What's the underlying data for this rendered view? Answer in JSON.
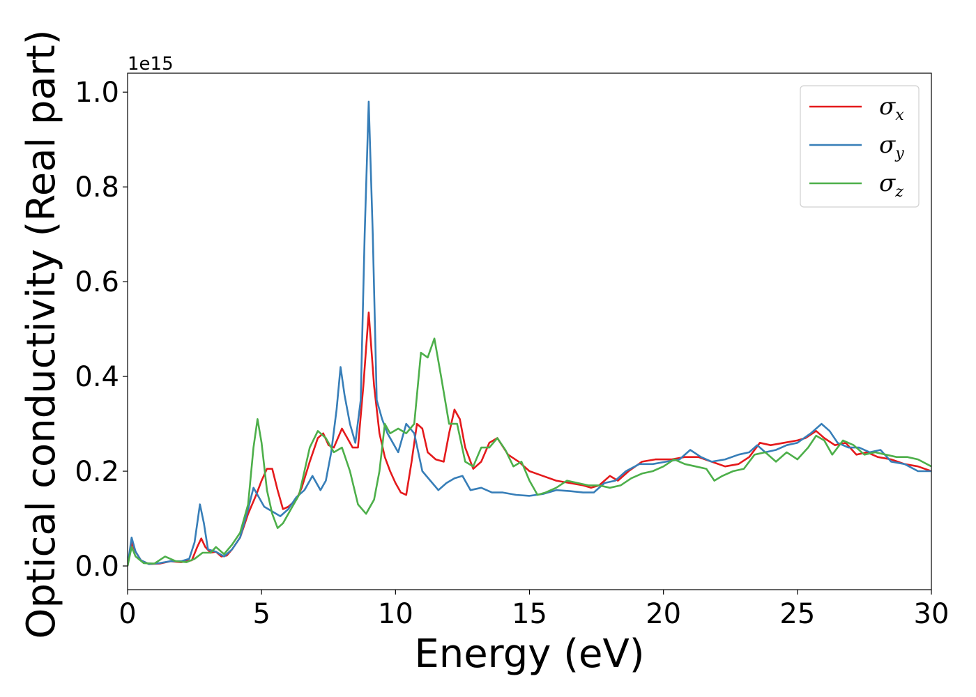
{
  "chart_data": {
    "type": "line",
    "xlabel": "Energy (eV)",
    "ylabel": "Optical conductivity (Real part)",
    "y_offset_label": "1e15",
    "xlim": [
      0,
      30
    ],
    "ylim": [
      -0.05,
      1.04
    ],
    "x_ticks": [
      0,
      5,
      10,
      15,
      20,
      25,
      30
    ],
    "x_tick_labels": [
      "0",
      "5",
      "10",
      "15",
      "20",
      "25",
      "30"
    ],
    "y_ticks": [
      0.0,
      0.2,
      0.4,
      0.6,
      0.8,
      1.0
    ],
    "y_tick_labels": [
      "0.0",
      "0.2",
      "0.4",
      "0.6",
      "0.8",
      "1.0"
    ],
    "grid": false,
    "legend_position": "top-right",
    "series": [
      {
        "name": "σ",
        "subscript": "x",
        "color": "#e41a1c",
        "points": [
          [
            0,
            0.0
          ],
          [
            0.15,
            0.05
          ],
          [
            0.3,
            0.03
          ],
          [
            0.5,
            0.012
          ],
          [
            0.8,
            0.004
          ],
          [
            1.2,
            0.005
          ],
          [
            1.6,
            0.01
          ],
          [
            2.0,
            0.008
          ],
          [
            2.4,
            0.012
          ],
          [
            2.6,
            0.04
          ],
          [
            2.75,
            0.058
          ],
          [
            2.9,
            0.04
          ],
          [
            3.1,
            0.028
          ],
          [
            3.3,
            0.03
          ],
          [
            3.5,
            0.02
          ],
          [
            3.7,
            0.022
          ],
          [
            3.9,
            0.035
          ],
          [
            4.2,
            0.06
          ],
          [
            4.5,
            0.11
          ],
          [
            4.8,
            0.15
          ],
          [
            5.0,
            0.18
          ],
          [
            5.2,
            0.205
          ],
          [
            5.4,
            0.205
          ],
          [
            5.6,
            0.16
          ],
          [
            5.8,
            0.12
          ],
          [
            6.0,
            0.125
          ],
          [
            6.3,
            0.14
          ],
          [
            6.5,
            0.165
          ],
          [
            6.8,
            0.22
          ],
          [
            7.1,
            0.27
          ],
          [
            7.3,
            0.28
          ],
          [
            7.5,
            0.255
          ],
          [
            7.7,
            0.25
          ],
          [
            7.85,
            0.27
          ],
          [
            8.0,
            0.29
          ],
          [
            8.2,
            0.27
          ],
          [
            8.4,
            0.25
          ],
          [
            8.6,
            0.25
          ],
          [
            8.8,
            0.38
          ],
          [
            9.0,
            0.535
          ],
          [
            9.2,
            0.38
          ],
          [
            9.4,
            0.28
          ],
          [
            9.6,
            0.23
          ],
          [
            9.8,
            0.2
          ],
          [
            10.0,
            0.175
          ],
          [
            10.2,
            0.155
          ],
          [
            10.4,
            0.15
          ],
          [
            10.6,
            0.22
          ],
          [
            10.8,
            0.3
          ],
          [
            11.0,
            0.29
          ],
          [
            11.2,
            0.24
          ],
          [
            11.5,
            0.225
          ],
          [
            11.8,
            0.22
          ],
          [
            12.0,
            0.28
          ],
          [
            12.2,
            0.33
          ],
          [
            12.4,
            0.31
          ],
          [
            12.6,
            0.25
          ],
          [
            12.9,
            0.205
          ],
          [
            13.2,
            0.22
          ],
          [
            13.5,
            0.26
          ],
          [
            13.8,
            0.27
          ],
          [
            14.2,
            0.235
          ],
          [
            14.6,
            0.22
          ],
          [
            15.0,
            0.2
          ],
          [
            15.5,
            0.19
          ],
          [
            16.0,
            0.18
          ],
          [
            16.5,
            0.175
          ],
          [
            17.0,
            0.17
          ],
          [
            17.3,
            0.165
          ],
          [
            17.6,
            0.17
          ],
          [
            18.0,
            0.19
          ],
          [
            18.3,
            0.18
          ],
          [
            18.7,
            0.2
          ],
          [
            19.2,
            0.22
          ],
          [
            19.7,
            0.225
          ],
          [
            20.3,
            0.225
          ],
          [
            20.8,
            0.23
          ],
          [
            21.3,
            0.23
          ],
          [
            21.8,
            0.22
          ],
          [
            22.3,
            0.21
          ],
          [
            22.8,
            0.215
          ],
          [
            23.2,
            0.23
          ],
          [
            23.6,
            0.26
          ],
          [
            24.0,
            0.255
          ],
          [
            24.5,
            0.26
          ],
          [
            25.0,
            0.265
          ],
          [
            25.3,
            0.27
          ],
          [
            25.7,
            0.285
          ],
          [
            26.0,
            0.27
          ],
          [
            26.4,
            0.255
          ],
          [
            26.8,
            0.26
          ],
          [
            27.2,
            0.235
          ],
          [
            27.6,
            0.24
          ],
          [
            28.0,
            0.23
          ],
          [
            28.5,
            0.225
          ],
          [
            29.0,
            0.215
          ],
          [
            29.5,
            0.21
          ],
          [
            30.0,
            0.2
          ]
        ]
      },
      {
        "name": "σ",
        "subscript": "y",
        "color": "#377eb8",
        "points": [
          [
            0,
            0.0
          ],
          [
            0.15,
            0.06
          ],
          [
            0.3,
            0.03
          ],
          [
            0.5,
            0.012
          ],
          [
            0.8,
            0.004
          ],
          [
            1.2,
            0.006
          ],
          [
            1.6,
            0.01
          ],
          [
            2.0,
            0.01
          ],
          [
            2.3,
            0.015
          ],
          [
            2.5,
            0.05
          ],
          [
            2.7,
            0.13
          ],
          [
            2.85,
            0.09
          ],
          [
            3.0,
            0.035
          ],
          [
            3.3,
            0.03
          ],
          [
            3.6,
            0.02
          ],
          [
            3.9,
            0.035
          ],
          [
            4.2,
            0.06
          ],
          [
            4.5,
            0.12
          ],
          [
            4.7,
            0.165
          ],
          [
            4.9,
            0.145
          ],
          [
            5.1,
            0.125
          ],
          [
            5.4,
            0.115
          ],
          [
            5.7,
            0.105
          ],
          [
            6.0,
            0.12
          ],
          [
            6.3,
            0.145
          ],
          [
            6.6,
            0.16
          ],
          [
            6.9,
            0.19
          ],
          [
            7.2,
            0.16
          ],
          [
            7.4,
            0.18
          ],
          [
            7.6,
            0.24
          ],
          [
            7.8,
            0.33
          ],
          [
            7.95,
            0.42
          ],
          [
            8.1,
            0.36
          ],
          [
            8.3,
            0.3
          ],
          [
            8.5,
            0.26
          ],
          [
            8.7,
            0.35
          ],
          [
            8.85,
            0.7
          ],
          [
            9.0,
            0.98
          ],
          [
            9.15,
            0.7
          ],
          [
            9.3,
            0.35
          ],
          [
            9.5,
            0.31
          ],
          [
            9.7,
            0.28
          ],
          [
            9.9,
            0.26
          ],
          [
            10.1,
            0.24
          ],
          [
            10.4,
            0.3
          ],
          [
            10.7,
            0.28
          ],
          [
            11.0,
            0.2
          ],
          [
            11.3,
            0.18
          ],
          [
            11.6,
            0.16
          ],
          [
            11.9,
            0.175
          ],
          [
            12.2,
            0.185
          ],
          [
            12.5,
            0.19
          ],
          [
            12.8,
            0.16
          ],
          [
            13.2,
            0.165
          ],
          [
            13.6,
            0.155
          ],
          [
            14.0,
            0.155
          ],
          [
            14.5,
            0.15
          ],
          [
            15.0,
            0.148
          ],
          [
            15.5,
            0.152
          ],
          [
            16.0,
            0.16
          ],
          [
            16.5,
            0.158
          ],
          [
            17.0,
            0.155
          ],
          [
            17.4,
            0.155
          ],
          [
            17.8,
            0.175
          ],
          [
            18.2,
            0.18
          ],
          [
            18.6,
            0.2
          ],
          [
            19.1,
            0.215
          ],
          [
            19.6,
            0.215
          ],
          [
            20.1,
            0.22
          ],
          [
            20.6,
            0.225
          ],
          [
            21.0,
            0.245
          ],
          [
            21.4,
            0.23
          ],
          [
            21.8,
            0.22
          ],
          [
            22.3,
            0.225
          ],
          [
            22.8,
            0.235
          ],
          [
            23.2,
            0.24
          ],
          [
            23.5,
            0.255
          ],
          [
            23.8,
            0.24
          ],
          [
            24.2,
            0.245
          ],
          [
            24.6,
            0.255
          ],
          [
            25.0,
            0.26
          ],
          [
            25.5,
            0.28
          ],
          [
            25.9,
            0.3
          ],
          [
            26.2,
            0.285
          ],
          [
            26.5,
            0.26
          ],
          [
            26.9,
            0.25
          ],
          [
            27.3,
            0.25
          ],
          [
            27.7,
            0.24
          ],
          [
            28.1,
            0.245
          ],
          [
            28.5,
            0.22
          ],
          [
            29.0,
            0.215
          ],
          [
            29.5,
            0.2
          ],
          [
            30.0,
            0.2
          ]
        ]
      },
      {
        "name": "σ",
        "subscript": "z",
        "color": "#4daf4a",
        "points": [
          [
            0,
            0.0
          ],
          [
            0.15,
            0.04
          ],
          [
            0.3,
            0.02
          ],
          [
            0.6,
            0.006
          ],
          [
            1.0,
            0.005
          ],
          [
            1.4,
            0.02
          ],
          [
            1.8,
            0.01
          ],
          [
            2.2,
            0.008
          ],
          [
            2.5,
            0.015
          ],
          [
            2.8,
            0.028
          ],
          [
            3.1,
            0.028
          ],
          [
            3.3,
            0.04
          ],
          [
            3.6,
            0.025
          ],
          [
            3.9,
            0.045
          ],
          [
            4.2,
            0.07
          ],
          [
            4.5,
            0.13
          ],
          [
            4.7,
            0.25
          ],
          [
            4.85,
            0.31
          ],
          [
            5.0,
            0.26
          ],
          [
            5.2,
            0.16
          ],
          [
            5.4,
            0.11
          ],
          [
            5.6,
            0.08
          ],
          [
            5.8,
            0.09
          ],
          [
            6.1,
            0.12
          ],
          [
            6.4,
            0.15
          ],
          [
            6.6,
            0.2
          ],
          [
            6.8,
            0.25
          ],
          [
            7.1,
            0.285
          ],
          [
            7.4,
            0.27
          ],
          [
            7.7,
            0.24
          ],
          [
            8.0,
            0.25
          ],
          [
            8.3,
            0.2
          ],
          [
            8.6,
            0.13
          ],
          [
            8.9,
            0.11
          ],
          [
            9.2,
            0.14
          ],
          [
            9.4,
            0.2
          ],
          [
            9.6,
            0.3
          ],
          [
            9.8,
            0.28
          ],
          [
            10.1,
            0.29
          ],
          [
            10.4,
            0.28
          ],
          [
            10.7,
            0.3
          ],
          [
            10.95,
            0.45
          ],
          [
            11.2,
            0.44
          ],
          [
            11.45,
            0.48
          ],
          [
            11.7,
            0.4
          ],
          [
            12.0,
            0.3
          ],
          [
            12.3,
            0.3
          ],
          [
            12.6,
            0.22
          ],
          [
            12.9,
            0.21
          ],
          [
            13.2,
            0.25
          ],
          [
            13.5,
            0.25
          ],
          [
            13.8,
            0.27
          ],
          [
            14.1,
            0.245
          ],
          [
            14.4,
            0.21
          ],
          [
            14.7,
            0.22
          ],
          [
            15.0,
            0.18
          ],
          [
            15.3,
            0.15
          ],
          [
            15.6,
            0.155
          ],
          [
            16.0,
            0.165
          ],
          [
            16.4,
            0.18
          ],
          [
            16.8,
            0.175
          ],
          [
            17.2,
            0.17
          ],
          [
            17.6,
            0.17
          ],
          [
            18.0,
            0.165
          ],
          [
            18.4,
            0.17
          ],
          [
            18.8,
            0.185
          ],
          [
            19.2,
            0.195
          ],
          [
            19.6,
            0.2
          ],
          [
            20.0,
            0.21
          ],
          [
            20.4,
            0.225
          ],
          [
            20.8,
            0.215
          ],
          [
            21.2,
            0.21
          ],
          [
            21.6,
            0.205
          ],
          [
            21.9,
            0.18
          ],
          [
            22.2,
            0.19
          ],
          [
            22.6,
            0.2
          ],
          [
            23.0,
            0.205
          ],
          [
            23.4,
            0.235
          ],
          [
            23.8,
            0.24
          ],
          [
            24.2,
            0.22
          ],
          [
            24.6,
            0.24
          ],
          [
            25.0,
            0.225
          ],
          [
            25.4,
            0.25
          ],
          [
            25.7,
            0.275
          ],
          [
            26.0,
            0.265
          ],
          [
            26.3,
            0.235
          ],
          [
            26.7,
            0.265
          ],
          [
            27.1,
            0.255
          ],
          [
            27.5,
            0.235
          ],
          [
            27.9,
            0.24
          ],
          [
            28.3,
            0.235
          ],
          [
            28.7,
            0.23
          ],
          [
            29.1,
            0.23
          ],
          [
            29.5,
            0.225
          ],
          [
            30.0,
            0.21
          ]
        ]
      }
    ]
  }
}
